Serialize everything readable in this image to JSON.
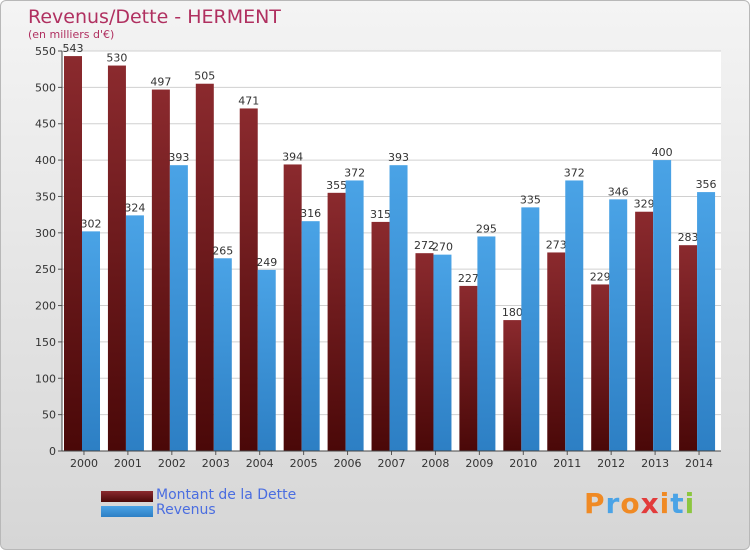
{
  "chart_data": {
    "type": "bar",
    "title": "Revenus/Dette - HERMENT",
    "subtitle": "(en milliers d'€)",
    "categories": [
      "2000",
      "2001",
      "2002",
      "2003",
      "2004",
      "2005",
      "2006",
      "2007",
      "2008",
      "2009",
      "2010",
      "2011",
      "2012",
      "2013",
      "2014"
    ],
    "series": [
      {
        "name": "Montant de la Dette",
        "values": [
          543,
          530,
          497,
          505,
          471,
          394,
          355,
          315,
          272,
          227,
          180,
          273,
          229,
          329,
          283
        ],
        "color": "#8b2a2e"
      },
      {
        "name": "Revenus",
        "values": [
          302,
          324,
          393,
          265,
          249,
          316,
          372,
          393,
          270,
          295,
          335,
          372,
          346,
          400,
          356
        ],
        "color": "#4aa3e6"
      }
    ],
    "ylim": [
      0,
      550
    ],
    "yticks": [
      0,
      50,
      100,
      150,
      200,
      250,
      300,
      350,
      400,
      450,
      500,
      550
    ],
    "grid": true,
    "legend_position": "bottom-left"
  },
  "logo": {
    "text": "Proxiti",
    "colors": [
      "#f08a24",
      "#4aa3e6",
      "#f08a24",
      "#e23b3b",
      "#f08a24",
      "#4aa3e6",
      "#8cc63f"
    ]
  }
}
